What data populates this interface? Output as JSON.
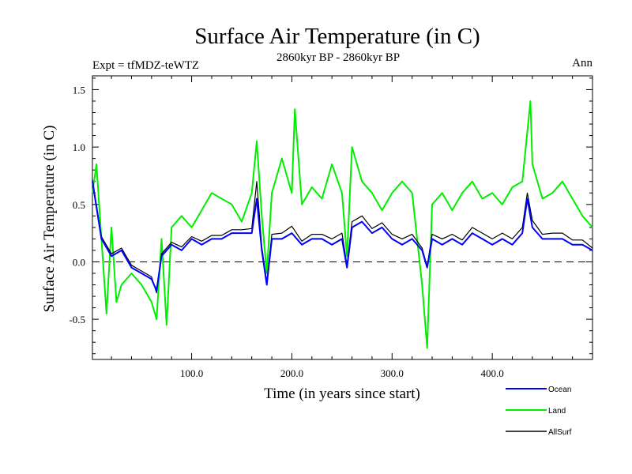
{
  "chart_data": {
    "type": "line",
    "title": "Surface Air Temperature (in C)",
    "subtitle": "2860kyr BP - 2860kyr BP",
    "experiment_label": "Expt = tfMDZ-teWTZ",
    "season_label": "Ann",
    "xlabel": "Time (in years since start)",
    "ylabel": "Surface Air Temperature (in C)",
    "xlim": [
      1,
      500
    ],
    "ylim": [
      -0.85,
      1.62
    ],
    "xticks": [
      100,
      200,
      300,
      400
    ],
    "xtick_labels": [
      "100.0",
      "200.0",
      "300.0",
      "400.0"
    ],
    "yticks": [
      -0.5,
      0.0,
      0.5,
      1.0,
      1.5
    ],
    "ytick_labels": [
      "-0.5",
      "0.0",
      "0.5",
      "1.0",
      "1.5"
    ],
    "reference_line": 0.0,
    "legend_position": "bottom-right",
    "series": [
      {
        "name": "Ocean",
        "color": "#0000ff",
        "x": [
          1,
          10,
          20,
          30,
          40,
          50,
          60,
          65,
          70,
          80,
          90,
          100,
          110,
          120,
          130,
          140,
          150,
          160,
          165,
          170,
          175,
          180,
          190,
          200,
          210,
          220,
          230,
          240,
          250,
          255,
          260,
          270,
          280,
          290,
          300,
          310,
          320,
          330,
          335,
          340,
          350,
          360,
          370,
          380,
          390,
          400,
          410,
          420,
          430,
          435,
          440,
          450,
          460,
          470,
          480,
          490,
          500
        ],
        "y": [
          0.7,
          0.2,
          0.05,
          0.1,
          -0.05,
          -0.1,
          -0.15,
          -0.25,
          0.05,
          0.15,
          0.1,
          0.2,
          0.15,
          0.2,
          0.2,
          0.25,
          0.25,
          0.25,
          0.55,
          0.1,
          -0.2,
          0.2,
          0.2,
          0.25,
          0.15,
          0.2,
          0.2,
          0.15,
          0.2,
          -0.05,
          0.3,
          0.35,
          0.25,
          0.3,
          0.2,
          0.15,
          0.2,
          0.1,
          -0.05,
          0.2,
          0.15,
          0.2,
          0.15,
          0.25,
          0.2,
          0.15,
          0.2,
          0.15,
          0.25,
          0.55,
          0.3,
          0.2,
          0.2,
          0.2,
          0.15,
          0.15,
          0.1
        ]
      },
      {
        "name": "Land",
        "color": "#00ee00",
        "x": [
          1,
          5,
          10,
          15,
          20,
          25,
          30,
          40,
          50,
          60,
          65,
          70,
          75,
          80,
          90,
          100,
          110,
          120,
          130,
          140,
          150,
          160,
          165,
          170,
          175,
          180,
          190,
          200,
          203,
          210,
          220,
          230,
          240,
          250,
          255,
          260,
          270,
          280,
          290,
          300,
          310,
          320,
          330,
          335,
          340,
          350,
          360,
          370,
          380,
          390,
          400,
          410,
          420,
          430,
          438,
          440,
          450,
          460,
          470,
          480,
          490,
          500
        ],
        "y": [
          0.6,
          0.85,
          0.2,
          -0.45,
          0.3,
          -0.35,
          -0.2,
          -0.1,
          -0.2,
          -0.35,
          -0.5,
          0.2,
          -0.55,
          0.3,
          0.4,
          0.3,
          0.45,
          0.6,
          0.55,
          0.5,
          0.35,
          0.6,
          1.05,
          0.4,
          -0.1,
          0.6,
          0.9,
          0.6,
          1.33,
          0.5,
          0.65,
          0.55,
          0.85,
          0.6,
          0.05,
          1.0,
          0.7,
          0.6,
          0.45,
          0.6,
          0.7,
          0.6,
          -0.2,
          -0.75,
          0.5,
          0.6,
          0.45,
          0.6,
          0.7,
          0.55,
          0.6,
          0.5,
          0.65,
          0.7,
          1.4,
          0.85,
          0.55,
          0.6,
          0.7,
          0.55,
          0.4,
          0.3
        ]
      },
      {
        "name": "AllSurf",
        "color": "#000000",
        "x": [
          1,
          10,
          20,
          30,
          40,
          50,
          60,
          65,
          70,
          80,
          90,
          100,
          110,
          120,
          130,
          140,
          150,
          160,
          165,
          170,
          175,
          180,
          190,
          200,
          210,
          220,
          230,
          240,
          250,
          255,
          260,
          270,
          280,
          290,
          300,
          310,
          320,
          330,
          335,
          340,
          350,
          360,
          370,
          380,
          390,
          400,
          410,
          420,
          430,
          435,
          440,
          450,
          460,
          470,
          480,
          490,
          500
        ],
        "y": [
          0.72,
          0.22,
          0.07,
          0.12,
          -0.03,
          -0.08,
          -0.13,
          -0.27,
          0.07,
          0.17,
          0.13,
          0.22,
          0.18,
          0.23,
          0.23,
          0.28,
          0.28,
          0.29,
          0.7,
          0.13,
          -0.18,
          0.24,
          0.25,
          0.31,
          0.18,
          0.24,
          0.24,
          0.2,
          0.25,
          -0.03,
          0.35,
          0.4,
          0.29,
          0.34,
          0.24,
          0.2,
          0.24,
          0.12,
          -0.04,
          0.24,
          0.2,
          0.24,
          0.19,
          0.3,
          0.25,
          0.2,
          0.25,
          0.2,
          0.3,
          0.6,
          0.36,
          0.24,
          0.25,
          0.25,
          0.19,
          0.19,
          0.12
        ]
      }
    ]
  }
}
